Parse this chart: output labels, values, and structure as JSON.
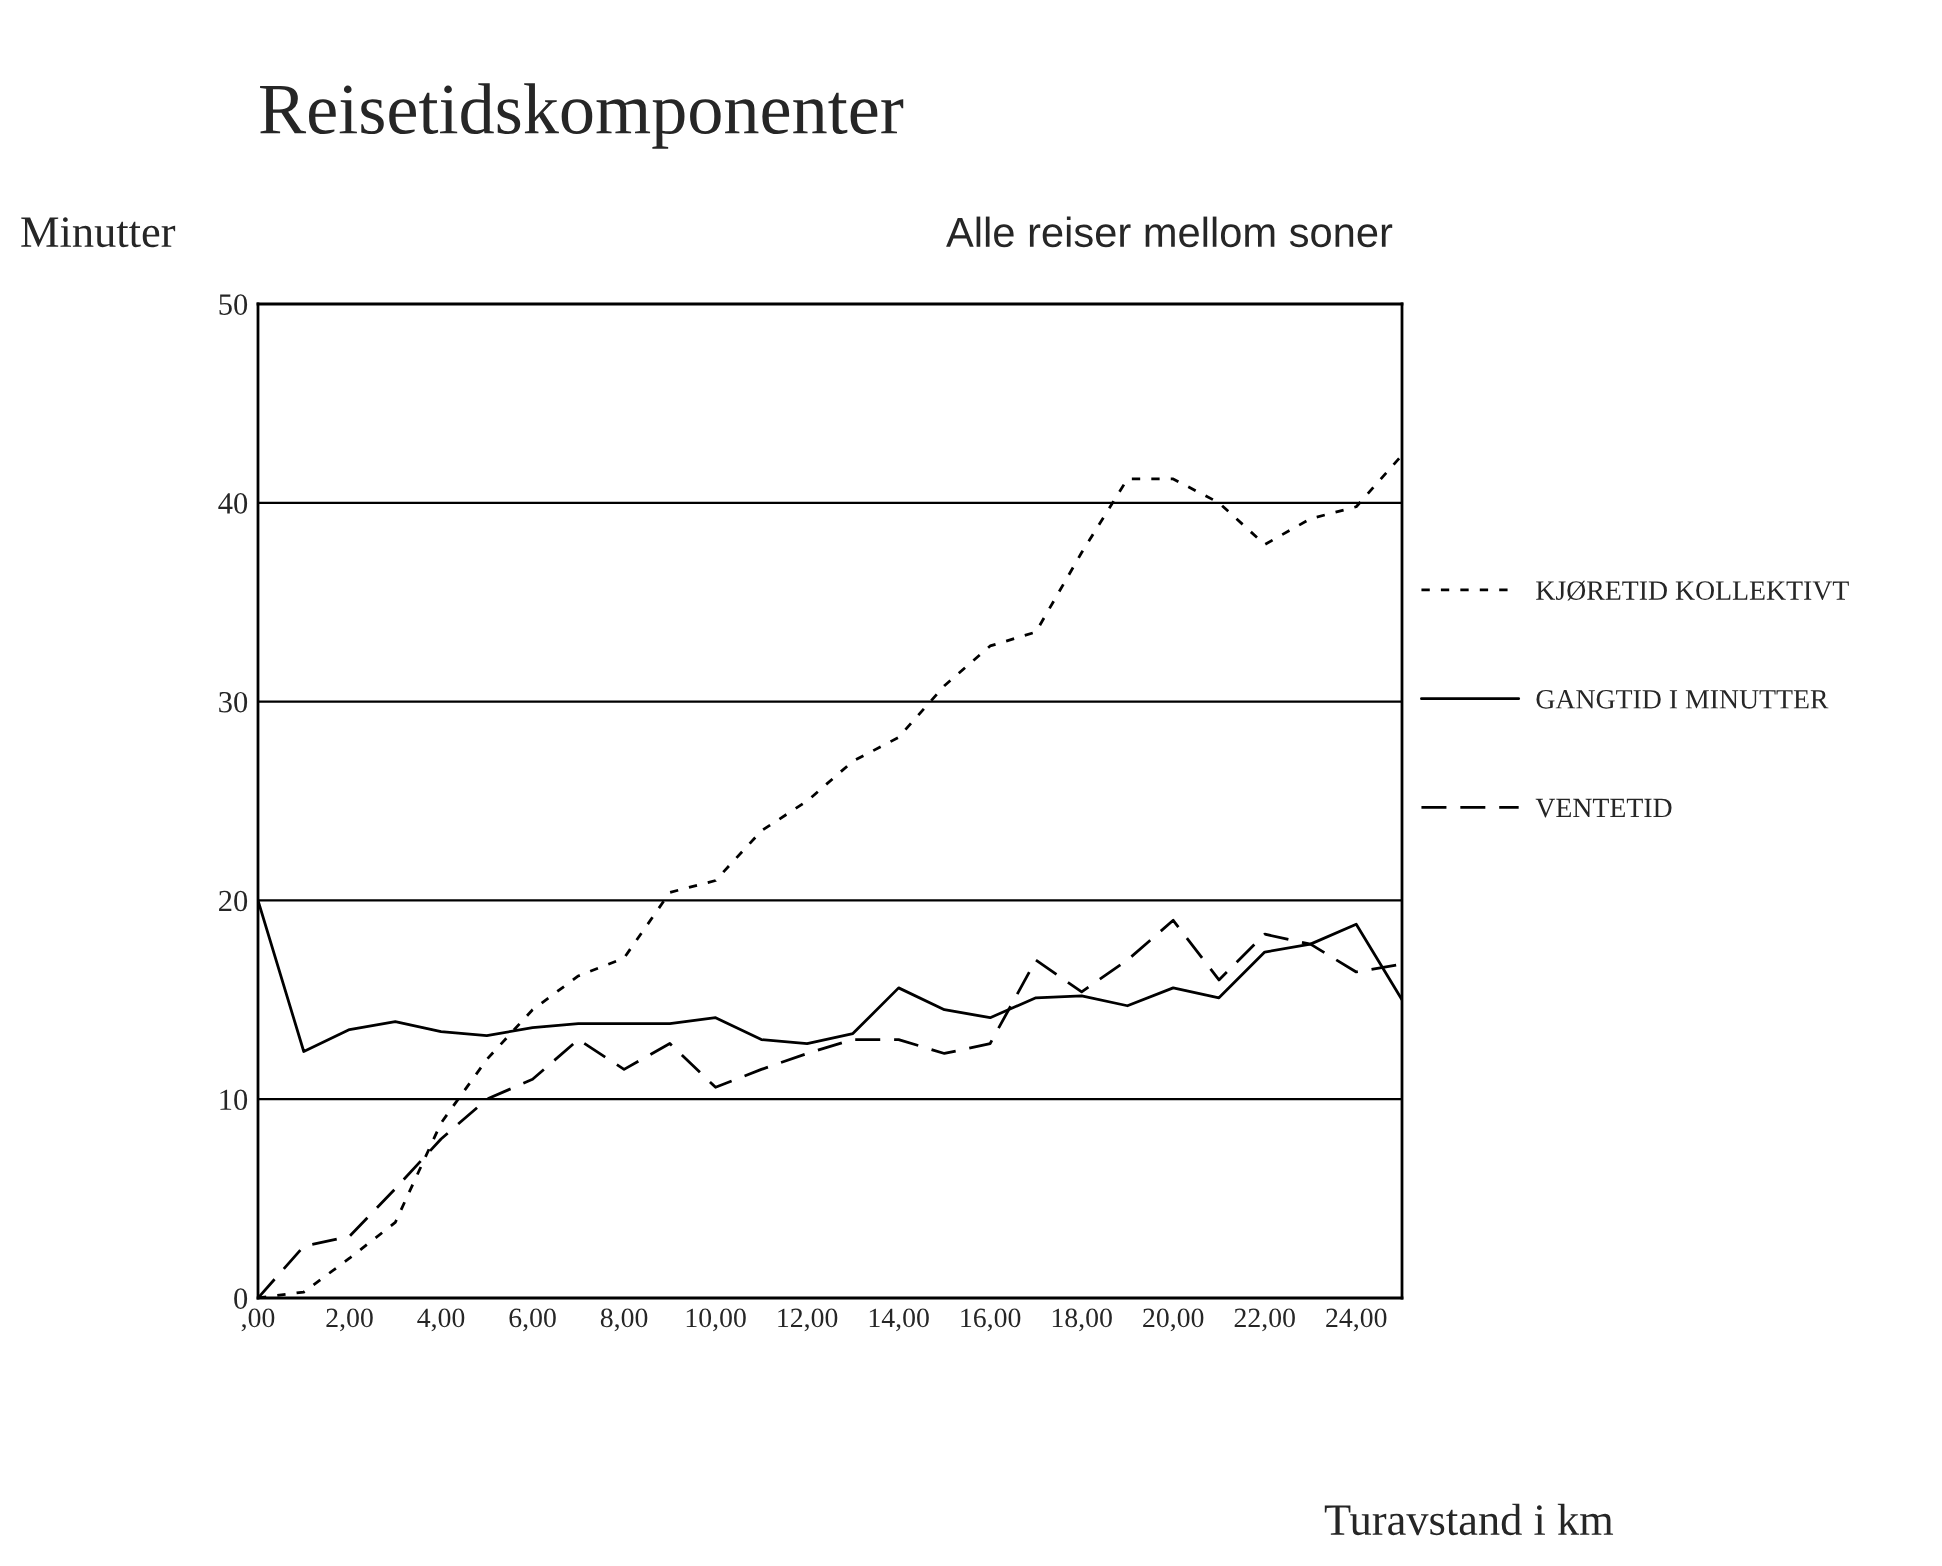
{
  "chart_data": {
    "type": "line",
    "title": "Reisetidskomponenter",
    "subtitle": "Alle reiser mellom soner",
    "xlabel": "Turavstand i km",
    "ylabel": "Minutter",
    "x": [
      0,
      1,
      2,
      3,
      4,
      5,
      6,
      7,
      8,
      9,
      10,
      11,
      12,
      13,
      14,
      15,
      16,
      17,
      18,
      19,
      20,
      21,
      22,
      23,
      24,
      25
    ],
    "series": [
      {
        "name": "KJØRETID KOLLEKTIVT",
        "color": "#000000",
        "line_style": "dotted",
        "values": [
          0,
          0.3,
          2.0,
          3.8,
          8.8,
          12.0,
          14.5,
          16.2,
          17.1,
          20.4,
          21.0,
          23.5,
          25.0,
          27.0,
          28.2,
          30.8,
          32.8,
          33.5,
          37.5,
          41.2,
          41.2,
          40.0,
          37.9,
          39.2,
          39.8,
          42.4
        ]
      },
      {
        "name": "GANGTID I MINUTTER",
        "color": "#000000",
        "line_style": "solid",
        "values": [
          20,
          12.4,
          13.5,
          13.9,
          13.4,
          13.2,
          13.6,
          13.8,
          13.8,
          13.8,
          14.1,
          13.0,
          12.8,
          13.3,
          15.6,
          14.5,
          14.1,
          15.1,
          15.2,
          14.7,
          15.6,
          15.1,
          17.4,
          17.8,
          18.8,
          15.0
        ]
      },
      {
        "name": "VENTETID",
        "color": "#000000",
        "line_style": "dashed",
        "values": [
          0,
          2.6,
          3.1,
          5.5,
          8.0,
          10.0,
          11.0,
          13.0,
          11.5,
          12.8,
          10.6,
          11.5,
          12.3,
          13.0,
          13.0,
          12.3,
          12.8,
          17.0,
          15.4,
          17.0,
          19.0,
          16.0,
          18.3,
          17.8,
          16.4,
          16.8
        ]
      }
    ],
    "xlim": [
      0,
      25
    ],
    "xticks": [
      {
        "value": 0,
        "label": ",00"
      },
      {
        "value": 2,
        "label": "2,00"
      },
      {
        "value": 4,
        "label": "4,00"
      },
      {
        "value": 6,
        "label": "6,00"
      },
      {
        "value": 8,
        "label": "8,00"
      },
      {
        "value": 10,
        "label": "10,00"
      },
      {
        "value": 12,
        "label": "12,00"
      },
      {
        "value": 14,
        "label": "14,00"
      },
      {
        "value": 16,
        "label": "16,00"
      },
      {
        "value": 18,
        "label": "18,00"
      },
      {
        "value": 20,
        "label": "20,00"
      },
      {
        "value": 22,
        "label": "22,00"
      },
      {
        "value": 24,
        "label": "24,00"
      }
    ],
    "ylim": [
      0,
      50
    ],
    "yticks": [
      0,
      10,
      20,
      30,
      40,
      50
    ],
    "grid": "y",
    "legend": "right",
    "marker": "none"
  }
}
